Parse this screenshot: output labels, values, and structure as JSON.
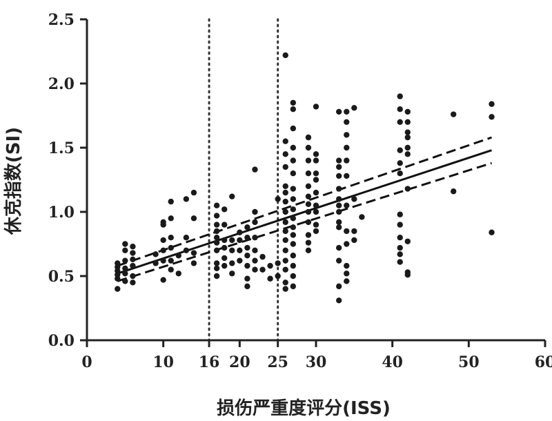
{
  "chart_data": {
    "type": "scatter",
    "xlabel": "损伤严重度评分(ISS)",
    "ylabel": "休克指数(SI)",
    "xlim": [
      0,
      60
    ],
    "ylim": [
      0,
      2.5
    ],
    "x_ticks": [
      {
        "value": 0,
        "label": "0"
      },
      {
        "value": 10,
        "label": "10"
      },
      {
        "value": 16,
        "label": "16"
      },
      {
        "value": 20,
        "label": "20"
      },
      {
        "value": 25,
        "label": "25"
      },
      {
        "value": 30,
        "label": "30"
      },
      {
        "value": 40,
        "label": "40"
      },
      {
        "value": 50,
        "label": "50"
      },
      {
        "value": 60,
        "label": "60"
      }
    ],
    "y_ticks": [
      {
        "value": 0,
        "label": "0.0"
      },
      {
        "value": 0.5,
        "label": "0.5"
      },
      {
        "value": 1.0,
        "label": "1.0"
      },
      {
        "value": 1.5,
        "label": "1.5"
      },
      {
        "value": 2.0,
        "label": "2.0"
      },
      {
        "value": 2.5,
        "label": "2.5"
      }
    ],
    "reference_lines_x": [
      16,
      25
    ],
    "regression": {
      "x_start": 4,
      "x_end": 53,
      "y_start": 0.52,
      "y_end": 1.48
    },
    "ci_upper": {
      "x_start": 4,
      "x_end": 53,
      "y_start": 0.58,
      "y_end": 1.58
    },
    "ci_lower": {
      "x_start": 4,
      "x_end": 53,
      "y_start": 0.46,
      "y_end": 1.38
    },
    "grid": false,
    "points": [
      [
        4,
        0.4
      ],
      [
        4,
        0.48
      ],
      [
        4,
        0.51
      ],
      [
        4,
        0.54
      ],
      [
        4,
        0.57
      ],
      [
        4,
        0.6
      ],
      [
        5,
        0.46
      ],
      [
        5,
        0.52
      ],
      [
        5,
        0.56
      ],
      [
        5,
        0.62
      ],
      [
        5,
        0.7
      ],
      [
        5,
        0.75
      ],
      [
        6,
        0.45
      ],
      [
        6,
        0.5
      ],
      [
        6,
        0.58
      ],
      [
        6,
        0.63
      ],
      [
        6,
        0.68
      ],
      [
        6,
        0.73
      ],
      [
        9,
        0.6
      ],
      [
        9,
        0.67
      ],
      [
        10,
        0.47
      ],
      [
        10,
        0.62
      ],
      [
        10,
        0.7
      ],
      [
        10,
        0.78
      ],
      [
        10,
        0.9
      ],
      [
        10,
        0.92
      ],
      [
        11,
        0.55
      ],
      [
        11,
        0.62
      ],
      [
        11,
        0.72
      ],
      [
        11,
        0.8
      ],
      [
        11,
        0.95
      ],
      [
        11,
        1.08
      ],
      [
        12,
        0.52
      ],
      [
        12,
        0.66
      ],
      [
        13,
        0.7
      ],
      [
        13,
        0.8
      ],
      [
        13,
        1.1
      ],
      [
        14,
        0.6
      ],
      [
        14,
        0.68
      ],
      [
        14,
        0.95
      ],
      [
        14,
        1.15
      ],
      [
        17,
        0.5
      ],
      [
        17,
        0.56
      ],
      [
        17,
        0.6
      ],
      [
        17,
        0.7
      ],
      [
        17,
        0.76
      ],
      [
        17,
        0.8
      ],
      [
        17,
        0.85
      ],
      [
        17,
        0.9
      ],
      [
        17,
        0.97
      ],
      [
        17,
        1.05
      ],
      [
        18,
        0.58
      ],
      [
        18,
        0.64
      ],
      [
        18,
        0.72
      ],
      [
        18,
        0.78
      ],
      [
        18,
        0.9
      ],
      [
        18,
        1.02
      ],
      [
        19,
        0.52
      ],
      [
        19,
        0.6
      ],
      [
        19,
        0.7
      ],
      [
        19,
        0.78
      ],
      [
        19,
        1.12
      ],
      [
        20,
        0.62
      ],
      [
        20,
        0.7
      ],
      [
        20,
        0.78
      ],
      [
        20,
        0.84
      ],
      [
        21,
        0.42
      ],
      [
        21,
        0.48
      ],
      [
        21,
        0.58
      ],
      [
        21,
        0.66
      ],
      [
        21,
        0.72
      ],
      [
        21,
        0.8
      ],
      [
        21,
        0.88
      ],
      [
        22,
        0.55
      ],
      [
        22,
        0.62
      ],
      [
        22,
        0.7
      ],
      [
        22,
        0.8
      ],
      [
        22,
        0.92
      ],
      [
        22,
        1.0
      ],
      [
        22,
        1.33
      ],
      [
        23,
        0.55
      ],
      [
        23,
        0.65
      ],
      [
        24,
        0.48
      ],
      [
        24,
        0.58
      ],
      [
        25,
        0.5
      ],
      [
        25,
        0.6
      ],
      [
        25,
        1.1
      ],
      [
        26,
        0.4
      ],
      [
        26,
        0.45
      ],
      [
        26,
        0.55
      ],
      [
        26,
        0.62
      ],
      [
        26,
        0.7
      ],
      [
        26,
        0.78
      ],
      [
        26,
        0.85
      ],
      [
        26,
        0.92
      ],
      [
        26,
        1.0
      ],
      [
        26,
        1.08
      ],
      [
        26,
        1.15
      ],
      [
        26,
        1.2
      ],
      [
        26,
        1.35
      ],
      [
        26,
        1.45
      ],
      [
        26,
        1.55
      ],
      [
        26,
        2.22
      ],
      [
        27,
        0.42
      ],
      [
        27,
        0.5
      ],
      [
        27,
        0.58
      ],
      [
        27,
        0.66
      ],
      [
        27,
        0.75
      ],
      [
        27,
        0.82
      ],
      [
        27,
        0.88
      ],
      [
        27,
        0.95
      ],
      [
        27,
        1.02
      ],
      [
        27,
        1.1
      ],
      [
        27,
        1.18
      ],
      [
        27,
        1.3
      ],
      [
        27,
        1.4
      ],
      [
        27,
        1.5
      ],
      [
        27,
        1.65
      ],
      [
        27,
        1.8
      ],
      [
        27,
        1.85
      ],
      [
        29,
        0.7
      ],
      [
        29,
        0.76
      ],
      [
        29,
        0.82
      ],
      [
        29,
        0.92
      ],
      [
        29,
        1.0
      ],
      [
        29,
        1.06
      ],
      [
        29,
        1.12
      ],
      [
        29,
        1.2
      ],
      [
        29,
        1.3
      ],
      [
        29,
        1.4
      ],
      [
        29,
        1.5
      ],
      [
        29,
        1.58
      ],
      [
        30,
        0.85
      ],
      [
        30,
        0.9
      ],
      [
        30,
        1.0
      ],
      [
        30,
        1.05
      ],
      [
        30,
        1.15
      ],
      [
        30,
        1.25
      ],
      [
        30,
        1.3
      ],
      [
        30,
        1.4
      ],
      [
        30,
        1.45
      ],
      [
        30,
        1.82
      ],
      [
        33,
        0.31
      ],
      [
        33,
        0.42
      ],
      [
        33,
        0.62
      ],
      [
        33,
        0.72
      ],
      [
        33,
        0.88
      ],
      [
        33,
        0.92
      ],
      [
        33,
        1.0
      ],
      [
        33,
        1.05
      ],
      [
        33,
        1.1
      ],
      [
        33,
        1.18
      ],
      [
        33,
        1.28
      ],
      [
        33,
        1.35
      ],
      [
        33,
        1.4
      ],
      [
        33,
        1.78
      ],
      [
        34,
        0.46
      ],
      [
        34,
        0.52
      ],
      [
        34,
        0.58
      ],
      [
        34,
        0.75
      ],
      [
        34,
        0.85
      ],
      [
        34,
        1.05
      ],
      [
        34,
        1.28
      ],
      [
        34,
        1.4
      ],
      [
        34,
        1.5
      ],
      [
        34,
        1.6
      ],
      [
        34,
        1.7
      ],
      [
        34,
        1.78
      ],
      [
        35,
        0.78
      ],
      [
        35,
        0.85
      ],
      [
        35,
        1.1
      ],
      [
        35,
        1.81
      ],
      [
        36,
        0.96
      ],
      [
        41,
        0.61
      ],
      [
        41,
        0.67
      ],
      [
        41,
        0.72
      ],
      [
        41,
        0.8
      ],
      [
        41,
        0.9
      ],
      [
        41,
        0.98
      ],
      [
        41,
        1.3
      ],
      [
        41,
        1.38
      ],
      [
        41,
        1.48
      ],
      [
        41,
        1.7
      ],
      [
        41,
        1.8
      ],
      [
        41,
        1.9
      ],
      [
        42,
        0.51
      ],
      [
        42,
        0.53
      ],
      [
        42,
        0.77
      ],
      [
        42,
        1.18
      ],
      [
        42,
        1.45
      ],
      [
        42,
        1.5
      ],
      [
        42,
        1.58
      ],
      [
        42,
        1.62
      ],
      [
        42,
        1.7
      ],
      [
        42,
        1.78
      ],
      [
        48,
        1.16
      ],
      [
        48,
        1.76
      ],
      [
        53,
        0.84
      ],
      [
        53,
        1.74
      ],
      [
        53,
        1.84
      ]
    ]
  }
}
